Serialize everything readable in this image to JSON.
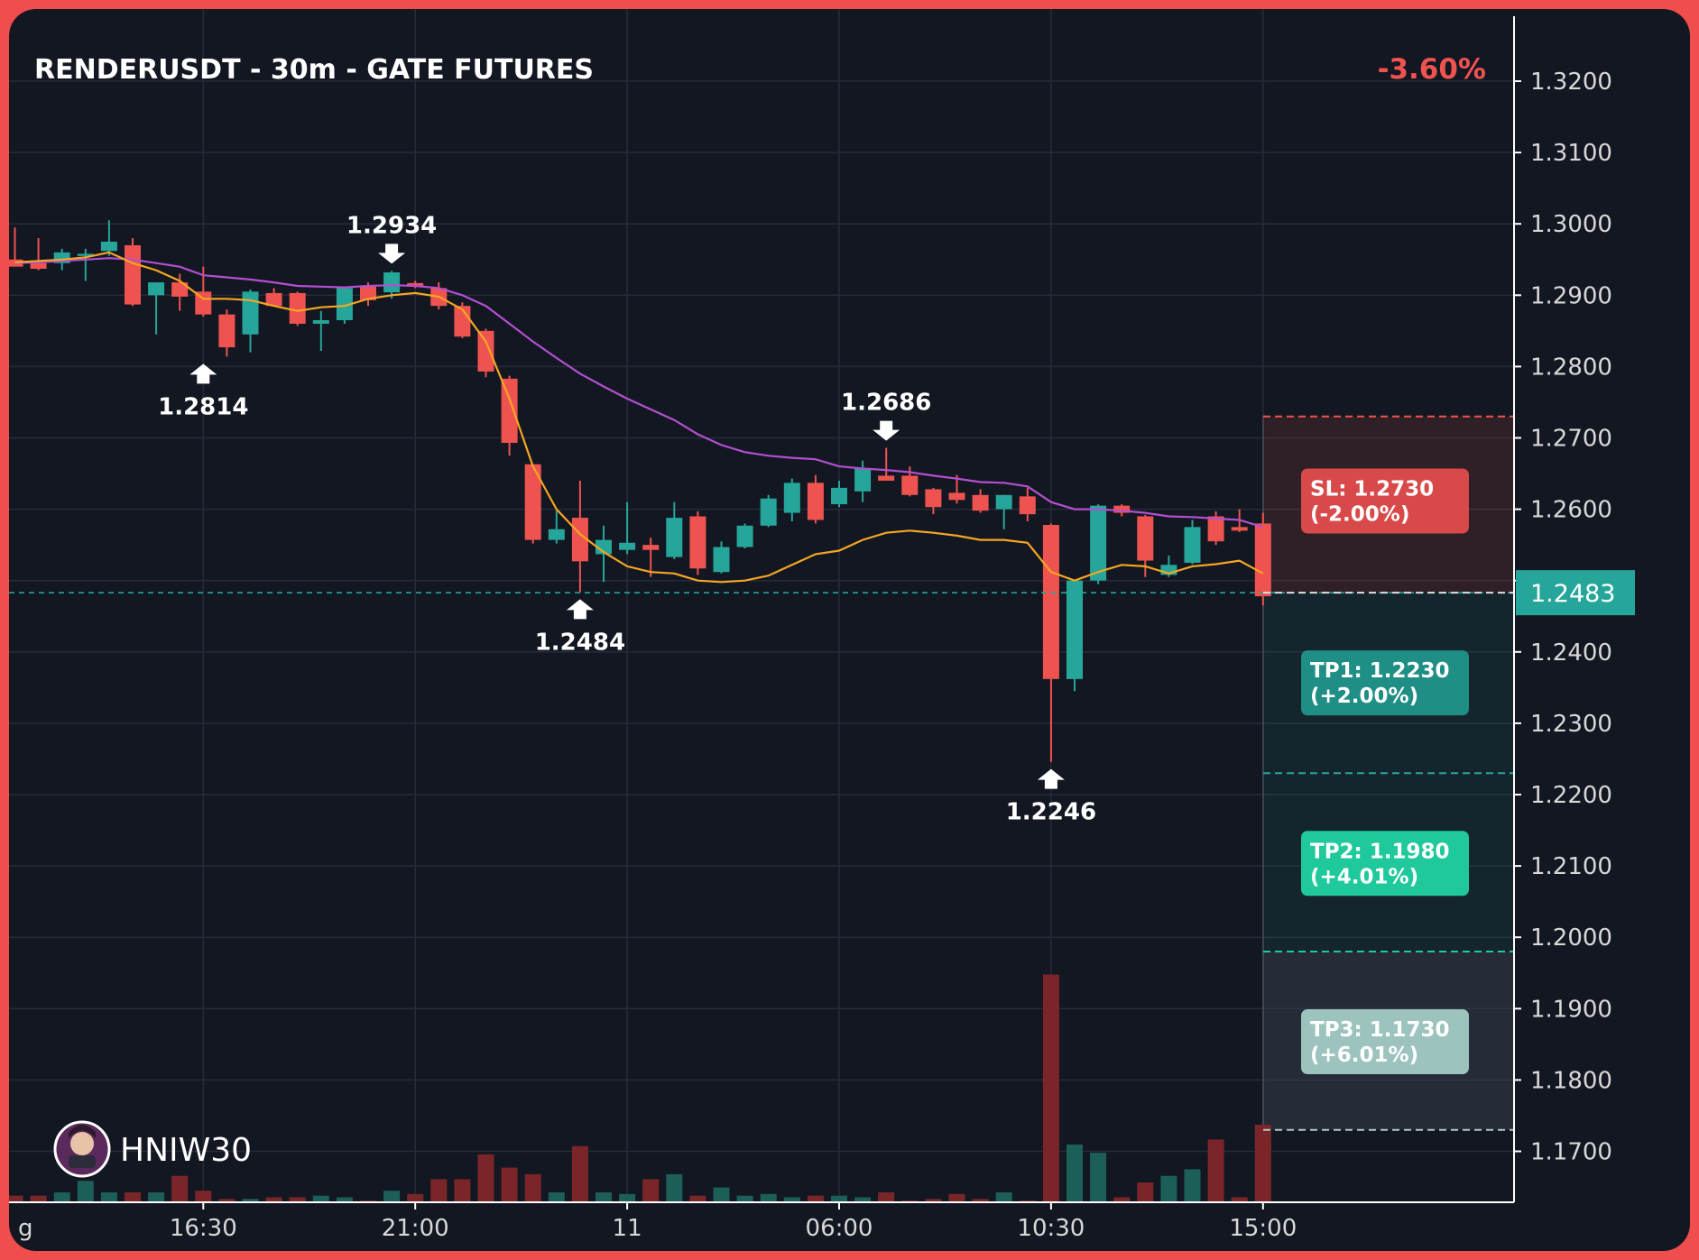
{
  "header": {
    "title": "RENDERUSDT - 30m - GATE FUTURES",
    "change": "-3.60%"
  },
  "colors": {
    "background": "#131722",
    "up": "#26a69a",
    "down": "#ef5350",
    "ma_fast": "#f5a623",
    "ma_slow": "#b34fd1",
    "current_price": "#26a69a"
  },
  "chart_data": {
    "type": "candlestick",
    "ylim": [
      1.165,
      1.3285
    ],
    "grid": true,
    "y_ticks": [
      "1.3200",
      "1.3100",
      "1.3000",
      "1.2900",
      "1.2800",
      "1.2700",
      "1.2600",
      "1.2500",
      "1.2400",
      "1.2300",
      "1.2200",
      "1.2100",
      "1.2000",
      "1.1900",
      "1.1800",
      "1.1700"
    ],
    "x_ticks": [
      {
        "label": "g",
        "index": -0.7
      },
      {
        "label": "16:30",
        "index": 8
      },
      {
        "label": "21:00",
        "index": 17
      },
      {
        "label": "11",
        "index": 26
      },
      {
        "label": "06:00",
        "index": 35
      },
      {
        "label": "10:30",
        "index": 44
      },
      {
        "label": "15:00",
        "index": 53
      }
    ],
    "candles": [
      {
        "o": 1.295,
        "h": 1.2995,
        "l": 1.294,
        "c": 1.294
      },
      {
        "o": 1.2945,
        "h": 1.298,
        "l": 1.2935,
        "c": 1.2937
      },
      {
        "o": 1.2945,
        "h": 1.2965,
        "l": 1.2935,
        "c": 1.296
      },
      {
        "o": 1.2955,
        "h": 1.2965,
        "l": 1.292,
        "c": 1.2958
      },
      {
        "o": 1.2962,
        "h": 1.3005,
        "l": 1.2955,
        "c": 1.2975
      },
      {
        "o": 1.297,
        "h": 1.298,
        "l": 1.2885,
        "c": 1.2887
      },
      {
        "o": 1.29,
        "h": 1.2918,
        "l": 1.2845,
        "c": 1.2918
      },
      {
        "o": 1.2918,
        "h": 1.293,
        "l": 1.2878,
        "c": 1.2898
      },
      {
        "o": 1.2905,
        "h": 1.294,
        "l": 1.287,
        "c": 1.2873
      },
      {
        "o": 1.2873,
        "h": 1.288,
        "l": 1.2814,
        "c": 1.2827
      },
      {
        "o": 1.2845,
        "h": 1.2908,
        "l": 1.282,
        "c": 1.2905
      },
      {
        "o": 1.2903,
        "h": 1.291,
        "l": 1.2885,
        "c": 1.2885
      },
      {
        "o": 1.2903,
        "h": 1.2905,
        "l": 1.2857,
        "c": 1.286
      },
      {
        "o": 1.286,
        "h": 1.2878,
        "l": 1.2822,
        "c": 1.2865
      },
      {
        "o": 1.2865,
        "h": 1.2912,
        "l": 1.286,
        "c": 1.291
      },
      {
        "o": 1.2912,
        "h": 1.2918,
        "l": 1.2885,
        "c": 1.2893
      },
      {
        "o": 1.2904,
        "h": 1.2934,
        "l": 1.2895,
        "c": 1.2932
      },
      {
        "o": 1.2917,
        "h": 1.292,
        "l": 1.291,
        "c": 1.2912
      },
      {
        "o": 1.291,
        "h": 1.2918,
        "l": 1.288,
        "c": 1.2885
      },
      {
        "o": 1.2885,
        "h": 1.289,
        "l": 1.284,
        "c": 1.2842
      },
      {
        "o": 1.285,
        "h": 1.2853,
        "l": 1.2785,
        "c": 1.2793
      },
      {
        "o": 1.2783,
        "h": 1.2787,
        "l": 1.2675,
        "c": 1.2693
      },
      {
        "o": 1.2663,
        "h": 1.2663,
        "l": 1.2552,
        "c": 1.2557
      },
      {
        "o": 1.2557,
        "h": 1.2598,
        "l": 1.2552,
        "c": 1.2572
      },
      {
        "o": 1.2588,
        "h": 1.264,
        "l": 1.2484,
        "c": 1.2527
      },
      {
        "o": 1.2537,
        "h": 1.2577,
        "l": 1.2498,
        "c": 1.2557
      },
      {
        "o": 1.2543,
        "h": 1.261,
        "l": 1.2537,
        "c": 1.2553
      },
      {
        "o": 1.255,
        "h": 1.256,
        "l": 1.2505,
        "c": 1.2543
      },
      {
        "o": 1.2533,
        "h": 1.261,
        "l": 1.253,
        "c": 1.2588
      },
      {
        "o": 1.259,
        "h": 1.2597,
        "l": 1.2508,
        "c": 1.2517
      },
      {
        "o": 1.2512,
        "h": 1.2555,
        "l": 1.251,
        "c": 1.2547
      },
      {
        "o": 1.2547,
        "h": 1.258,
        "l": 1.2545,
        "c": 1.2577
      },
      {
        "o": 1.2577,
        "h": 1.262,
        "l": 1.2575,
        "c": 1.2615
      },
      {
        "o": 1.2595,
        "h": 1.2643,
        "l": 1.2583,
        "c": 1.2637
      },
      {
        "o": 1.2637,
        "h": 1.2648,
        "l": 1.258,
        "c": 1.2585
      },
      {
        "o": 1.2607,
        "h": 1.264,
        "l": 1.2603,
        "c": 1.263
      },
      {
        "o": 1.2625,
        "h": 1.2668,
        "l": 1.261,
        "c": 1.2657
      },
      {
        "o": 1.2647,
        "h": 1.2686,
        "l": 1.264,
        "c": 1.264
      },
      {
        "o": 1.2647,
        "h": 1.266,
        "l": 1.2618,
        "c": 1.262
      },
      {
        "o": 1.2628,
        "h": 1.263,
        "l": 1.2593,
        "c": 1.2603
      },
      {
        "o": 1.2623,
        "h": 1.2648,
        "l": 1.2608,
        "c": 1.2613
      },
      {
        "o": 1.262,
        "h": 1.2628,
        "l": 1.2595,
        "c": 1.2598
      },
      {
        "o": 1.26,
        "h": 1.262,
        "l": 1.2572,
        "c": 1.262
      },
      {
        "o": 1.2618,
        "h": 1.263,
        "l": 1.2583,
        "c": 1.2593
      },
      {
        "o": 1.2578,
        "h": 1.258,
        "l": 1.2246,
        "c": 1.2362
      },
      {
        "o": 1.2362,
        "h": 1.25,
        "l": 1.2345,
        "c": 1.25
      },
      {
        "o": 1.25,
        "h": 1.2607,
        "l": 1.2495,
        "c": 1.2605
      },
      {
        "o": 1.2605,
        "h": 1.2607,
        "l": 1.259,
        "c": 1.2595
      },
      {
        "o": 1.259,
        "h": 1.2592,
        "l": 1.2505,
        "c": 1.2528
      },
      {
        "o": 1.2508,
        "h": 1.2535,
        "l": 1.2505,
        "c": 1.2522
      },
      {
        "o": 1.2525,
        "h": 1.2585,
        "l": 1.2523,
        "c": 1.2575
      },
      {
        "o": 1.259,
        "h": 1.2597,
        "l": 1.255,
        "c": 1.2555
      },
      {
        "o": 1.2575,
        "h": 1.26,
        "l": 1.2568,
        "c": 1.257
      },
      {
        "o": 1.258,
        "h": 1.2595,
        "l": 1.2465,
        "c": 1.2478
      }
    ],
    "volumes": [
      0.4,
      0.4,
      0.6,
      1.3,
      0.6,
      0.6,
      0.6,
      1.6,
      0.7,
      0.2,
      0.2,
      0.3,
      0.3,
      0.4,
      0.3,
      0.1,
      0.7,
      0.5,
      1.4,
      1.4,
      2.9,
      2.1,
      1.7,
      0.6,
      3.4,
      0.6,
      0.5,
      1.4,
      1.7,
      0.4,
      0.9,
      0.4,
      0.5,
      0.3,
      0.4,
      0.4,
      0.3,
      0.6,
      0.1,
      0.2,
      0.5,
      0.2,
      0.6,
      0.1,
      13.8,
      3.5,
      3.0,
      0.3,
      1.2,
      1.6,
      2.0,
      3.8,
      0.3,
      4.7
    ],
    "ma_fast": [
      1.2946,
      1.2948,
      1.295,
      1.2953,
      1.296,
      1.2945,
      1.2935,
      1.292,
      1.2895,
      1.2895,
      1.2893,
      1.2885,
      1.2878,
      1.2883,
      1.2885,
      1.2895,
      1.29,
      1.2903,
      1.2898,
      1.288,
      1.2835,
      1.2755,
      1.266,
      1.26,
      1.2565,
      1.254,
      1.252,
      1.2512,
      1.251,
      1.25,
      1.2498,
      1.25,
      1.2507,
      1.2522,
      1.2537,
      1.2542,
      1.2557,
      1.2567,
      1.257,
      1.2567,
      1.2563,
      1.2557,
      1.2557,
      1.2553,
      1.2512,
      1.25,
      1.2512,
      1.2522,
      1.252,
      1.251,
      1.252,
      1.2523,
      1.2528,
      1.251
    ],
    "ma_slow": [
      1.2945,
      1.2946,
      1.2948,
      1.295,
      1.2952,
      1.295,
      1.2945,
      1.294,
      1.2928,
      1.2925,
      1.2922,
      1.2918,
      1.2913,
      1.2912,
      1.2911,
      1.2913,
      1.2914,
      1.2913,
      1.291,
      1.29,
      1.2885,
      1.286,
      1.2835,
      1.2812,
      1.279,
      1.2772,
      1.2755,
      1.274,
      1.2725,
      1.2705,
      1.269,
      1.268,
      1.2675,
      1.2672,
      1.267,
      1.266,
      1.2657,
      1.2655,
      1.2652,
      1.2647,
      1.2643,
      1.2638,
      1.2637,
      1.2632,
      1.261,
      1.26,
      1.26,
      1.2598,
      1.2595,
      1.259,
      1.2589,
      1.2587,
      1.2585,
      1.2575
    ],
    "pivots": [
      {
        "index": 8,
        "price": 1.2814,
        "label": "1.2814",
        "kind": "low"
      },
      {
        "index": 16,
        "price": 1.2934,
        "label": "1.2934",
        "kind": "high"
      },
      {
        "index": 24,
        "price": 1.2484,
        "label": "1.2484",
        "kind": "low"
      },
      {
        "index": 37,
        "price": 1.2686,
        "label": "1.2686",
        "kind": "high"
      },
      {
        "index": 44,
        "price": 1.2246,
        "label": "1.2246",
        "kind": "low"
      }
    ],
    "current_price": {
      "value": 1.2483,
      "label": "1.2483"
    },
    "levels": [
      {
        "name": "SL",
        "price": 1.273,
        "label_line1": "SL: 1.2730",
        "label_line2": "(-2.00%)",
        "color": "#ef5350",
        "box": "#d84a4a"
      },
      {
        "name": "TP1",
        "price": 1.223,
        "label_line1": "TP1: 1.2230",
        "label_line2": "(+2.00%)",
        "color": "#26a69a",
        "box": "#1f8e84"
      },
      {
        "name": "TP2",
        "price": 1.198,
        "label_line1": "TP2: 1.1980",
        "label_line2": "(+4.01%)",
        "color": "#1ec99c",
        "box": "#1fc99b"
      },
      {
        "name": "TP3",
        "price": 1.173,
        "label_line1": "TP3: 1.1730",
        "label_line2": "(+6.01%)",
        "color": "#b5c7c4",
        "box": "#9cc3bd"
      }
    ]
  },
  "watermark": {
    "avatar_icon": "avatar-icon",
    "username": "HNIW30"
  }
}
